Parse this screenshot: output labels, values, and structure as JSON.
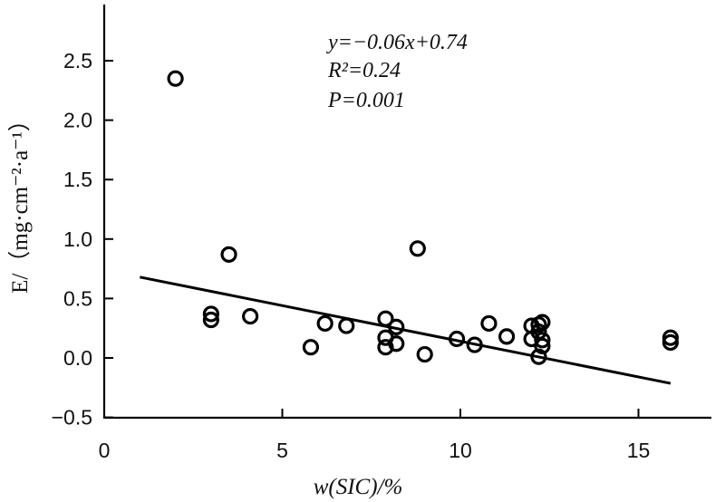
{
  "chart_data": {
    "type": "scatter",
    "xlabel": "w(SIC)/%",
    "ylabel": "E/（mg·cm⁻²·a⁻¹）",
    "xlim": [
      0,
      17
    ],
    "ylim": [
      -0.5,
      2.5
    ],
    "xticks": [
      "0",
      "5",
      "10",
      "15"
    ],
    "yticks": [
      "−0.5",
      "0.0",
      "0.5",
      "1.0",
      "1.5",
      "2.0",
      "2.5"
    ],
    "grid": false,
    "annotations": {
      "equation": "y=−0.06x+0.74",
      "r_squared": "R²=0.24",
      "p_value": "P=0.001"
    },
    "regression": {
      "slope": -0.06,
      "intercept": 0.74,
      "x_range": [
        1.0,
        15.9
      ]
    },
    "points": [
      {
        "x": 2.0,
        "y": 2.35
      },
      {
        "x": 3.5,
        "y": 0.87
      },
      {
        "x": 3.0,
        "y": 0.37
      },
      {
        "x": 3.0,
        "y": 0.32
      },
      {
        "x": 4.1,
        "y": 0.35
      },
      {
        "x": 5.8,
        "y": 0.09
      },
      {
        "x": 6.2,
        "y": 0.29
      },
      {
        "x": 6.8,
        "y": 0.27
      },
      {
        "x": 7.9,
        "y": 0.33
      },
      {
        "x": 7.9,
        "y": 0.17
      },
      {
        "x": 7.9,
        "y": 0.09
      },
      {
        "x": 8.2,
        "y": 0.26
      },
      {
        "x": 8.2,
        "y": 0.12
      },
      {
        "x": 8.8,
        "y": 0.92
      },
      {
        "x": 9.0,
        "y": 0.03
      },
      {
        "x": 9.9,
        "y": 0.16
      },
      {
        "x": 10.4,
        "y": 0.11
      },
      {
        "x": 10.8,
        "y": 0.29
      },
      {
        "x": 11.3,
        "y": 0.18
      },
      {
        "x": 12.0,
        "y": 0.27
      },
      {
        "x": 12.0,
        "y": 0.16
      },
      {
        "x": 12.2,
        "y": 0.28
      },
      {
        "x": 12.3,
        "y": 0.3
      },
      {
        "x": 12.2,
        "y": 0.22
      },
      {
        "x": 12.3,
        "y": 0.15
      },
      {
        "x": 12.3,
        "y": 0.1
      },
      {
        "x": 12.2,
        "y": 0.01
      },
      {
        "x": 15.9,
        "y": 0.17
      },
      {
        "x": 15.9,
        "y": 0.13
      }
    ]
  }
}
